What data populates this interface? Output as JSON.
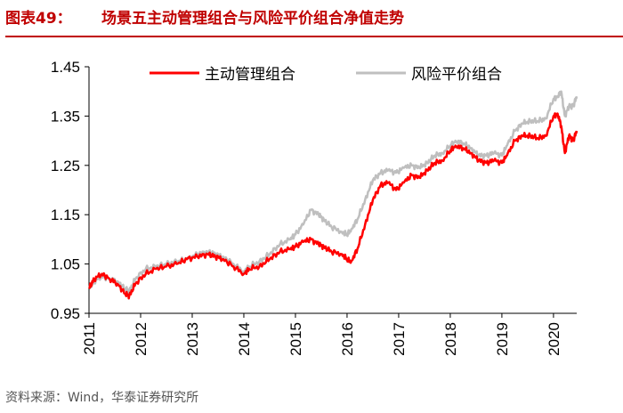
{
  "header": {
    "figure_label": "图表49：",
    "title": "场景五主动管理组合与风险平价组合净值走势"
  },
  "footer": {
    "source": "资料来源：Wind，华泰证券研究所"
  },
  "colors": {
    "accent": "#c00000",
    "series_active": "#ff0000",
    "series_riskparity": "#bfbfbf",
    "axis": "#000000"
  },
  "chart_data": {
    "type": "line",
    "title": "",
    "xlabel": "",
    "ylabel": "",
    "ylim": [
      0.95,
      1.45
    ],
    "yticks": [
      "0.95",
      "1.05",
      "1.15",
      "1.25",
      "1.35",
      "1.45"
    ],
    "xlim": [
      2011.0,
      2020.45
    ],
    "xticks": [
      "2011",
      "2012",
      "2013",
      "2014",
      "2015",
      "2016",
      "2017",
      "2018",
      "2019",
      "2020"
    ],
    "grid": false,
    "legend_position": "top",
    "series": [
      {
        "name": "主动管理组合",
        "color": "#ff0000",
        "x": [
          2011.0,
          2011.1,
          2011.25,
          2011.4,
          2011.55,
          2011.7,
          2011.78,
          2011.9,
          2012.1,
          2012.3,
          2012.5,
          2012.7,
          2012.9,
          2013.1,
          2013.3,
          2013.45,
          2013.6,
          2013.8,
          2014.0,
          2014.1,
          2014.3,
          2014.5,
          2014.7,
          2014.9,
          2015.0,
          2015.15,
          2015.3,
          2015.45,
          2015.55,
          2015.7,
          2015.9,
          2016.0,
          2016.08,
          2016.2,
          2016.35,
          2016.5,
          2016.65,
          2016.8,
          2016.95,
          2017.1,
          2017.25,
          2017.4,
          2017.55,
          2017.7,
          2017.85,
          2018.0,
          2018.1,
          2018.25,
          2018.4,
          2018.55,
          2018.7,
          2018.85,
          2019.0,
          2019.1,
          2019.25,
          2019.4,
          2019.55,
          2019.7,
          2019.85,
          2020.0,
          2020.08,
          2020.15,
          2020.22,
          2020.3,
          2020.38,
          2020.45
        ],
        "values": [
          1.0,
          1.02,
          1.03,
          1.02,
          1.01,
          0.99,
          0.985,
          1.01,
          1.03,
          1.04,
          1.045,
          1.05,
          1.06,
          1.065,
          1.07,
          1.065,
          1.06,
          1.045,
          1.03,
          1.04,
          1.045,
          1.06,
          1.075,
          1.08,
          1.085,
          1.095,
          1.1,
          1.09,
          1.085,
          1.075,
          1.07,
          1.06,
          1.055,
          1.08,
          1.13,
          1.18,
          1.21,
          1.215,
          1.2,
          1.215,
          1.23,
          1.225,
          1.24,
          1.255,
          1.26,
          1.28,
          1.29,
          1.285,
          1.275,
          1.26,
          1.255,
          1.26,
          1.255,
          1.27,
          1.3,
          1.31,
          1.31,
          1.305,
          1.31,
          1.35,
          1.355,
          1.33,
          1.275,
          1.31,
          1.3,
          1.32
        ]
      },
      {
        "name": "风险平价组合",
        "color": "#bfbfbf",
        "x": [
          2011.0,
          2011.1,
          2011.25,
          2011.4,
          2011.55,
          2011.7,
          2011.78,
          2011.9,
          2012.1,
          2012.3,
          2012.5,
          2012.7,
          2012.9,
          2013.1,
          2013.3,
          2013.45,
          2013.6,
          2013.8,
          2014.0,
          2014.1,
          2014.3,
          2014.5,
          2014.7,
          2014.9,
          2015.0,
          2015.15,
          2015.3,
          2015.45,
          2015.55,
          2015.7,
          2015.9,
          2016.0,
          2016.08,
          2016.2,
          2016.35,
          2016.5,
          2016.65,
          2016.8,
          2016.95,
          2017.1,
          2017.25,
          2017.4,
          2017.55,
          2017.7,
          2017.85,
          2018.0,
          2018.1,
          2018.25,
          2018.4,
          2018.55,
          2018.7,
          2018.85,
          2019.0,
          2019.1,
          2019.25,
          2019.4,
          2019.55,
          2019.7,
          2019.85,
          2020.0,
          2020.08,
          2020.15,
          2020.22,
          2020.3,
          2020.38,
          2020.45
        ],
        "values": [
          1.0,
          1.015,
          1.025,
          1.02,
          1.015,
          1.0,
          0.995,
          1.02,
          1.04,
          1.045,
          1.05,
          1.055,
          1.06,
          1.07,
          1.075,
          1.07,
          1.065,
          1.05,
          1.035,
          1.045,
          1.055,
          1.07,
          1.09,
          1.1,
          1.11,
          1.13,
          1.16,
          1.15,
          1.14,
          1.125,
          1.115,
          1.11,
          1.12,
          1.14,
          1.18,
          1.22,
          1.235,
          1.24,
          1.235,
          1.245,
          1.25,
          1.245,
          1.255,
          1.27,
          1.275,
          1.29,
          1.3,
          1.295,
          1.285,
          1.27,
          1.27,
          1.275,
          1.27,
          1.29,
          1.32,
          1.335,
          1.34,
          1.34,
          1.345,
          1.385,
          1.39,
          1.4,
          1.35,
          1.37,
          1.37,
          1.39
        ]
      }
    ]
  }
}
